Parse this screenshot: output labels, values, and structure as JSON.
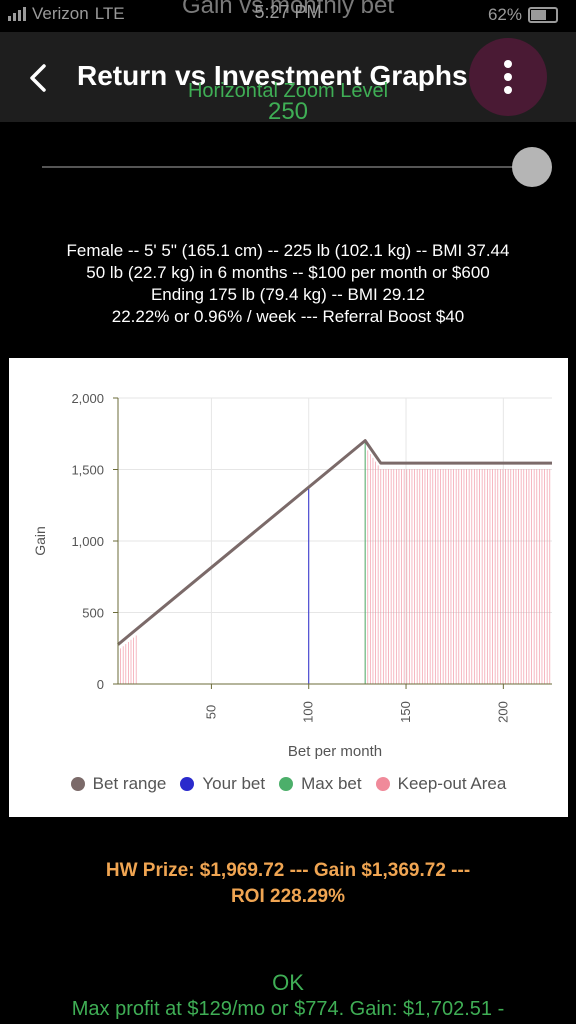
{
  "status_bar": {
    "carrier": "Verizon",
    "network": "LTE",
    "time": "5:27 PM",
    "battery": "62%"
  },
  "ghost_title": "Gain vs monthly bet",
  "header": {
    "title": "Return vs Investment Graphs",
    "back_icon": "chevron-left-icon",
    "menu_icon": "more-vertical-icon"
  },
  "zoom": {
    "label": "Horizontal Zoom Level",
    "value": "250",
    "slider_level": 1.0
  },
  "info_lines": [
    "Female -- 5' 5\" (165.1 cm) -- 225 lb (102.1 kg) -- BMI 37.44",
    "50 lb (22.7 kg) in 6 months -- $100 per month or $600",
    "Ending 175 lb (79.4 kg) -- BMI 29.12",
    "22.22% or 0.96% / week --- Referral Boost $40"
  ],
  "chart_data": {
    "type": "line",
    "xlabel": "Bet per month",
    "ylabel": "Gain",
    "xlim": [
      2,
      225
    ],
    "ylim": [
      0,
      2000
    ],
    "x_ticks": [
      50,
      100,
      150,
      200
    ],
    "y_ticks": [
      0,
      500,
      1000,
      1500,
      2000
    ],
    "y_tick_labels": [
      "0",
      "500",
      "1,000",
      "1,500",
      "2,000"
    ],
    "grid": true,
    "legend_placement": "bottom",
    "series": [
      {
        "name": "Bet range",
        "color": "#7b6a69",
        "x": [
          2,
          129,
          137,
          225
        ],
        "y": [
          276,
          1702,
          1545,
          1545
        ]
      },
      {
        "name": "Your bet",
        "color": "#2a2acc",
        "x": [
          100,
          100
        ],
        "y": [
          0,
          1370
        ]
      },
      {
        "name": "Max bet",
        "color": "#4caf6a",
        "x": [
          129,
          129
        ],
        "y": [
          0,
          1702
        ]
      },
      {
        "name": "Keep-out Area",
        "color": "#f08a9a",
        "ranges": [
          [
            2,
            12
          ],
          [
            129,
            225
          ]
        ]
      }
    ]
  },
  "prize": {
    "line1": "HW Prize: $1,969.72 --- Gain $1,369.72 ---",
    "line2": "ROI 228.29%"
  },
  "ok_label": "OK",
  "max_profit": "Max profit at $129/mo or $774. Gain: $1,702.51 -"
}
